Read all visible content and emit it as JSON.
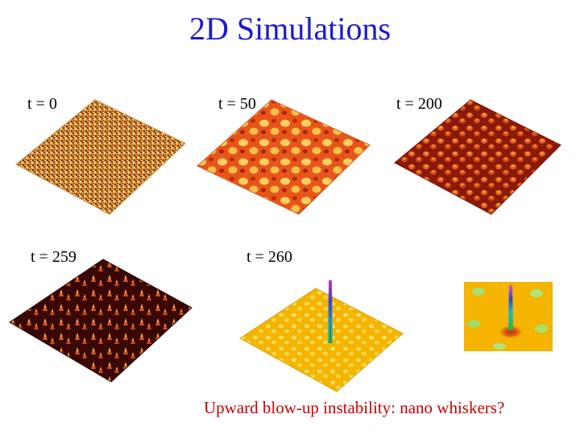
{
  "slide": {
    "title": "2D Simulations",
    "labels": {
      "t0": "t = 0",
      "t50": "t = 50",
      "t200": "t = 200",
      "t259": "t = 259",
      "t260": "t = 260"
    },
    "caption": "Upward blow-up instability: nano whiskers?"
  },
  "colors": {
    "title": "#1a1acc",
    "caption": "#cc0000"
  }
}
